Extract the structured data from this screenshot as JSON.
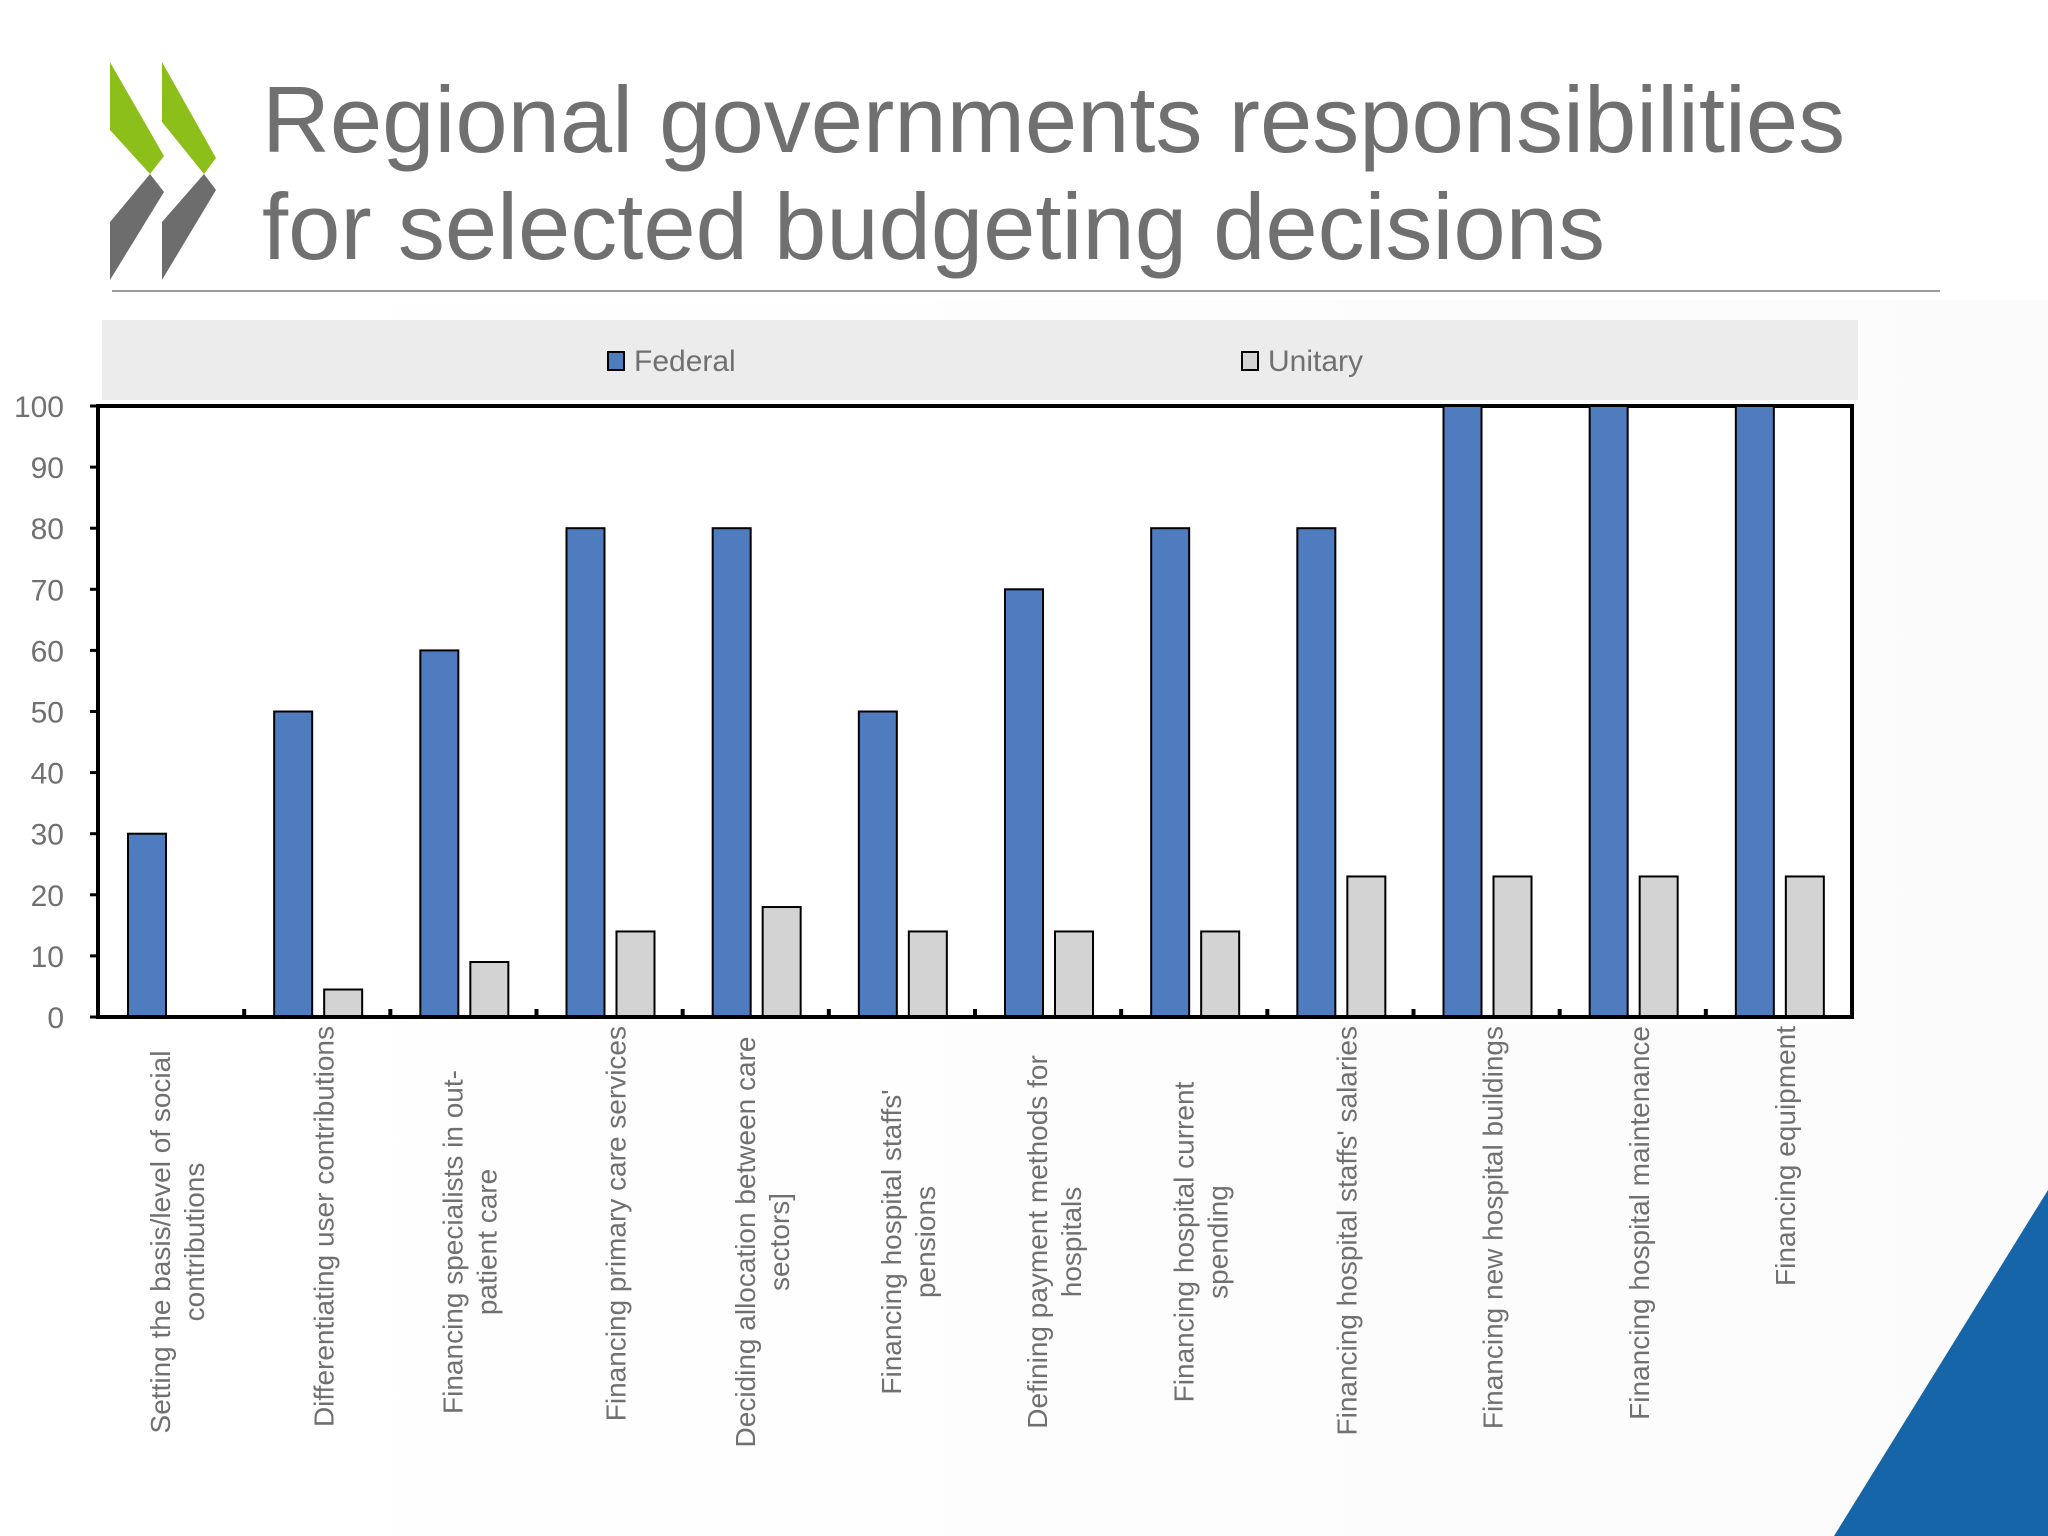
{
  "slide": {
    "title_line1": "Regional governments responsibilities",
    "title_line2": "for selected budgeting decisions",
    "logo_icon": "double-chevron-logo-icon",
    "corner_icon": "blue-triangle-decoration-icon"
  },
  "colors": {
    "federal": "#4f7bbf",
    "unitary": "#d3d3d3",
    "title": "#707070",
    "logo_green": "#8dbf1a",
    "logo_grey": "#6d6d6d",
    "corner_blue": "#1565a8",
    "legend_bg": "#ececec"
  },
  "chart_data": {
    "type": "bar",
    "title": "",
    "xlabel": "",
    "ylabel": "",
    "ylim": [
      0,
      100
    ],
    "yticks": [
      0,
      10,
      20,
      30,
      40,
      50,
      60,
      70,
      80,
      90,
      100
    ],
    "grid": false,
    "legend_position": "top",
    "categories": [
      [
        "Setting the basis/level of social",
        "contributions"
      ],
      [
        "Differentiating user contributions"
      ],
      [
        "Financing specialists in out-",
        "patient care"
      ],
      [
        "Financing primary care services"
      ],
      [
        "Deciding allocation between care",
        "sectors]"
      ],
      [
        "Financing hospital staffs'",
        "pensions"
      ],
      [
        "Defining payment methods for",
        "hospitals"
      ],
      [
        "Financing hospital current",
        "spending"
      ],
      [
        "Financing hospital staffs' salaries"
      ],
      [
        "Financing new hospital buildings"
      ],
      [
        "Financing hospital maintenance"
      ],
      [
        "Financing equipment"
      ]
    ],
    "series": [
      {
        "name": "Federal",
        "values": [
          30,
          50,
          60,
          80,
          80,
          50,
          70,
          80,
          80,
          100,
          100,
          100
        ]
      },
      {
        "name": "Unitary",
        "values": [
          0,
          4.5,
          9,
          14,
          18,
          14,
          14,
          14,
          23,
          23,
          23,
          23
        ]
      }
    ]
  }
}
